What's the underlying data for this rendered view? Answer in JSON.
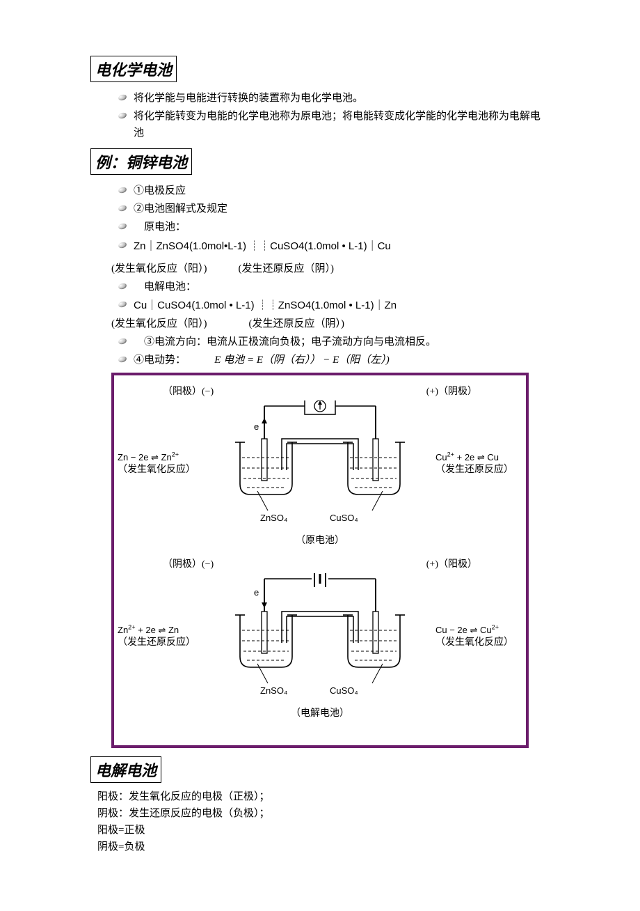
{
  "section1": {
    "title": "电化学电池",
    "bullets": [
      "将化学能与电能进行转换的装置称为电化学电池。",
      "将化学能转变为电能的化学电池称为原电池；将电能转变成化学能的化学电池称为电解电池"
    ]
  },
  "section2": {
    "title": "例：铜锌电池",
    "bullets": [
      "①电极反应",
      "②电池图解式及规定",
      "　原电池："
    ],
    "notation1_b": "Zn｜ZnSO4(1.0mol•L-1) ┊┊CuSO4(1.0mol • L-1)｜Cu",
    "notation1_sub": "(发生氧化反应（阳）)　　　(发生还原反应（阴）)",
    "bullet_elec": "　电解电池：",
    "notation2_b": "Cu｜CuSO4(1.0mol • L-1) ┊┊ZnSO4(1.0mol • L-1)｜Zn",
    "notation2_sub": "(发生氧化反应（阳）)　　　　(发生还原反应（阴）)",
    "bullet3": "　③电流方向：电流从正极流向负极；电子流动方向与电流相反。",
    "bullet4_pre": "④电动势：",
    "bullet4_eq": "E 电池 = E（阴（右）） − E（阳（左）)"
  },
  "diagram": {
    "border_color": "#6b1d6b",
    "font_eq": "Arial",
    "cell1": {
      "left_top": "（阳极）(−)",
      "right_top": "(+)（阴极）",
      "e_label": "e",
      "left_eq_html": "Zn − 2e  ⇌  Zn<sup>2+</sup>",
      "left_cn": "（发生氧化反应）",
      "right_eq_html": "Cu<sup>2+</sup> + 2e  ⇌  Cu",
      "right_cn": "（发生还原反应）",
      "sol_left": "ZnSO₄",
      "sol_right": "CuSO₄",
      "caption": "（原电池）"
    },
    "cell2": {
      "left_top": "（阴极）(−)",
      "right_top": "(+)（阳极）",
      "e_label": "e",
      "left_eq_html": "Zn<sup>2+</sup> + 2e  ⇌  Zn",
      "left_cn": "（发生还原反应）",
      "right_eq_html": "Cu − 2e  ⇌  Cu<sup>2+</sup>",
      "right_cn": "（发生氧化反应）",
      "sol_left": "ZnSO₄",
      "sol_right": "CuSO₄",
      "caption": "（电解电池）"
    }
  },
  "section3": {
    "title": "电解电池",
    "lines": [
      "阳极：发生氧化反应的电极（正极）；",
      "阴极：发生还原反应的电极（负极）；",
      "阳极=正极",
      "阴极=负极"
    ]
  }
}
